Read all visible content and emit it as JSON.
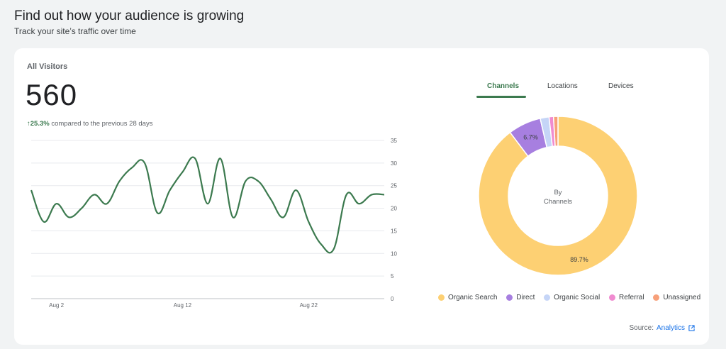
{
  "header": {
    "title": "Find out how your audience is growing",
    "subtitle": "Track your site’s traffic over time"
  },
  "card": {
    "title": "All Visitors",
    "total": "560",
    "change_arrow": "↑",
    "change_pct": "25.3%",
    "change_text": " compared to the previous 28 days"
  },
  "tabs": [
    {
      "label": "Channels",
      "active": true
    },
    {
      "label": "Locations",
      "active": false
    },
    {
      "label": "Devices",
      "active": false
    }
  ],
  "source": {
    "prefix": "Source:",
    "link": "Analytics",
    "icon": "external-link-icon"
  },
  "colors": {
    "line": "#3c7a4f",
    "accent": "#3c7a4f",
    "link": "#1a73e8"
  },
  "chart_data": [
    {
      "type": "line",
      "x_tick_labels": [
        "Aug 2",
        "Aug 12",
        "Aug 22"
      ],
      "x_tick_days": [
        2,
        12,
        22
      ],
      "y_ticks": [
        0,
        5,
        10,
        15,
        20,
        25,
        30,
        35
      ],
      "ylim": [
        0,
        35
      ],
      "xlim_days": [
        0,
        28
      ],
      "grid": true,
      "series": [
        {
          "days": [
            0,
            1,
            2,
            3,
            4,
            5,
            6,
            7,
            8,
            9,
            10,
            11,
            12,
            13,
            14,
            15,
            16,
            17,
            18,
            19,
            20,
            21,
            22,
            23,
            24,
            25,
            26,
            27,
            28
          ],
          "values": [
            24,
            17,
            21,
            18,
            20,
            23,
            21,
            26,
            29,
            30,
            19,
            24,
            28,
            31,
            21,
            31,
            18,
            26,
            26,
            22,
            18,
            24,
            17,
            12,
            11,
            23,
            21,
            23,
            23
          ]
        }
      ]
    },
    {
      "type": "pie",
      "donut": true,
      "center_label_line1": "By",
      "center_label_line2": "Channels",
      "legend_position": "bottom",
      "slices": [
        {
          "label": "Organic Search",
          "value": 89.7,
          "display": "89.7%",
          "color": "#fdd073"
        },
        {
          "label": "Direct",
          "value": 6.7,
          "display": "6.7%",
          "color": "#a77fe0"
        },
        {
          "label": "Organic Social",
          "value": 1.8,
          "display": "",
          "color": "#c5d5f7"
        },
        {
          "label": "Referral",
          "value": 0.9,
          "display": "",
          "color": "#f08bd0"
        },
        {
          "label": "Unassigned",
          "value": 0.9,
          "display": "",
          "color": "#f7a07a"
        }
      ]
    }
  ]
}
